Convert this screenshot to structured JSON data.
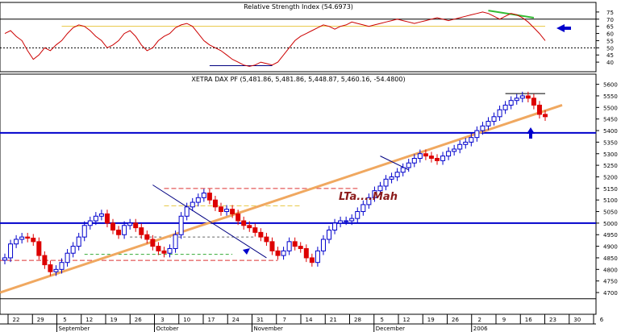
{
  "rsi_panel": {
    "title": "Relative Strength Index (54.6973)",
    "ylim": [
      35,
      80
    ],
    "yticks": [
      40,
      45,
      50,
      55,
      60,
      65,
      70,
      75
    ],
    "overbought": 70,
    "oversold": 50,
    "support_level": 65
  },
  "price_panel": {
    "title": "XETRA DAX PF (5,481.86, 5,481.86, 5,448.87, 5,460.16, -54.4800)",
    "annotation": "LTa....Mah",
    "ylim": [
      4620,
      5630
    ],
    "yticks": [
      4700,
      4750,
      4800,
      4850,
      4900,
      4950,
      5000,
      5050,
      5100,
      5150,
      5200,
      5250,
      5300,
      5350,
      5400,
      5450,
      5500,
      5550,
      5600
    ],
    "support_levels": [
      5390,
      5000
    ],
    "colors": {
      "up": "#0000cc",
      "down": "#dd0000",
      "trend": "#f0a860",
      "rsi": "#cc0000",
      "level": "#0000cc"
    }
  },
  "x_axis": {
    "day_labels": [
      "22",
      "29",
      "5",
      "12",
      "19",
      "26",
      "3",
      "10",
      "17",
      "24",
      "31",
      "7",
      "14",
      "21",
      "28",
      "5",
      "12",
      "19",
      "26",
      "2",
      "9",
      "16",
      "23",
      "30",
      "6"
    ],
    "month_labels": [
      "September",
      "October",
      "November",
      "December",
      "2006"
    ]
  },
  "chart_data": {
    "type": "candlestick",
    "title": "XETRA DAX PF (5,481.86, 5,481.86, 5,448.87, 5,460.16, -54.4800)",
    "ylim": [
      4620,
      5630
    ],
    "closes": [
      4850,
      4910,
      4930,
      4940,
      4935,
      4920,
      4860,
      4820,
      4790,
      4800,
      4830,
      4870,
      4900,
      4940,
      4990,
      5010,
      5030,
      5040,
      5000,
      4970,
      4950,
      4990,
      5000,
      4980,
      4950,
      4930,
      4900,
      4880,
      4870,
      4890,
      4950,
      5030,
      5070,
      5090,
      5110,
      5130,
      5100,
      5070,
      5050,
      5060,
      5040,
      5010,
      4990,
      4980,
      4960,
      4940,
      4920,
      4880,
      4860,
      4880,
      4920,
      4900,
      4890,
      4850,
      4830,
      4880,
      4930,
      4970,
      5000,
      5010,
      5010,
      5020,
      5050,
      5080,
      5110,
      5140,
      5160,
      5190,
      5200,
      5220,
      5240,
      5260,
      5280,
      5300,
      5290,
      5280,
      5270,
      5290,
      5310,
      5320,
      5340,
      5350,
      5370,
      5400,
      5420,
      5440,
      5460,
      5490,
      5510,
      5530,
      5540,
      5550,
      5540,
      5510,
      5470,
      5460
    ],
    "rsi": [
      60,
      62,
      58,
      55,
      48,
      42,
      45,
      50,
      48,
      52,
      55,
      60,
      64,
      66,
      65,
      62,
      58,
      55,
      50,
      52,
      55,
      60,
      62,
      58,
      52,
      48,
      50,
      55,
      58,
      60,
      64,
      66,
      67,
      65,
      60,
      55,
      52,
      50,
      48,
      45,
      42,
      40,
      38,
      37,
      38,
      40,
      39,
      38,
      40,
      45,
      50,
      55,
      58,
      60,
      62,
      64,
      66,
      65,
      63,
      65,
      66,
      68,
      67,
      66,
      65,
      66,
      67,
      68,
      69,
      70,
      69,
      68,
      67,
      68,
      69,
      70,
      71,
      70,
      69,
      70,
      71,
      72,
      73,
      74,
      75,
      74,
      72,
      70,
      72,
      74,
      73,
      71,
      68,
      64,
      60,
      55
    ]
  }
}
